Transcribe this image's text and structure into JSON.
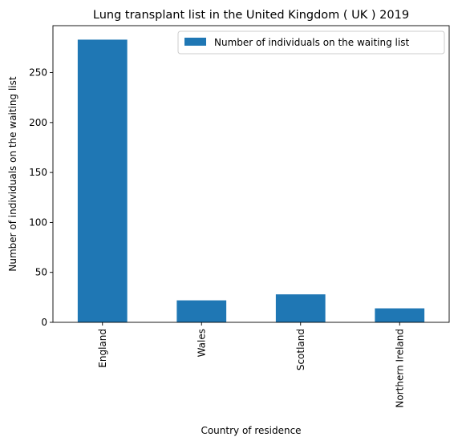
{
  "chart_data": {
    "type": "bar",
    "title": "Lung transplant list in the United Kingdom ( UK ) 2019",
    "xlabel": "Country of residence",
    "ylabel": "Number of individuals on the waiting list",
    "categories": [
      "England",
      "Wales",
      "Scotland",
      "Northern Ireland"
    ],
    "series": [
      {
        "name": "Number of individuals on the waiting list",
        "values": [
          283,
          22,
          28,
          14
        ]
      }
    ],
    "ylim": [
      0,
      297
    ],
    "yticks": [
      0,
      50,
      100,
      150,
      200,
      250
    ],
    "legend": "top-right",
    "grid": false,
    "bar_color": "#1f77b4"
  }
}
